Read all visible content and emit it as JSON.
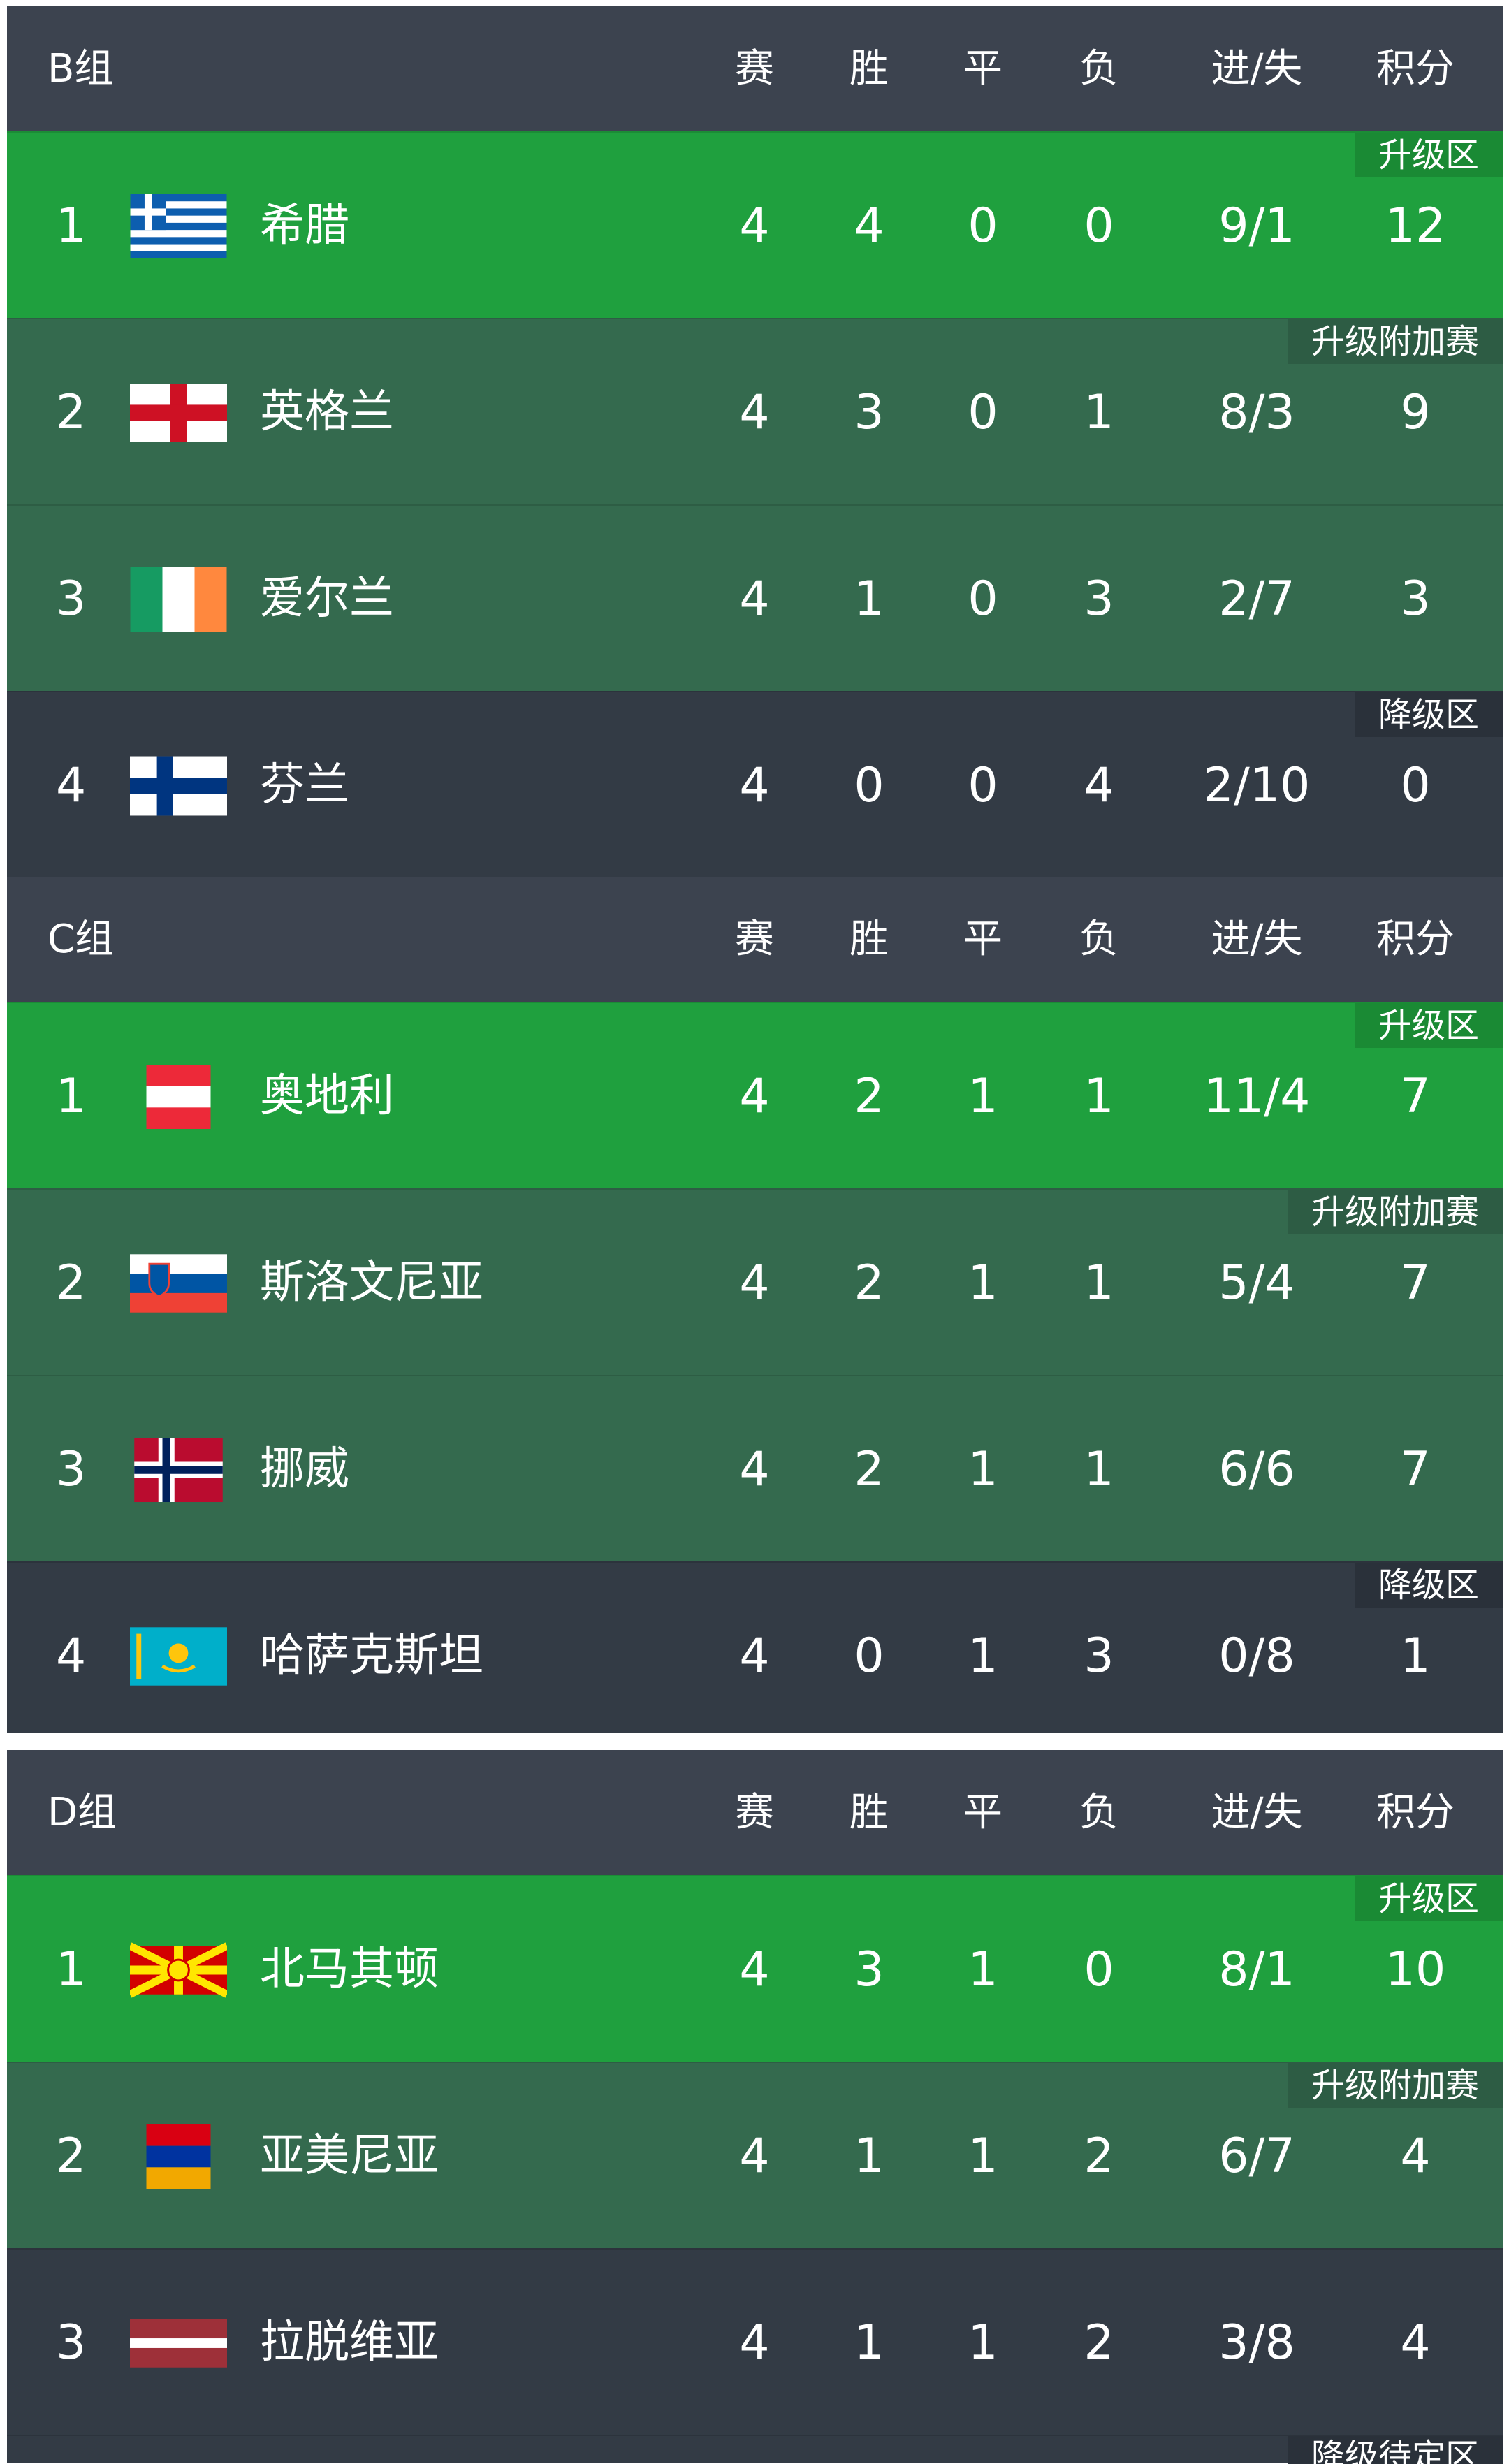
{
  "columns": [
    "赛",
    "胜",
    "平",
    "负",
    "进/失",
    "积分"
  ],
  "groups": [
    {
      "name": "B组",
      "rows": [
        {
          "rank": "1",
          "flag": "greece",
          "team": "希腊",
          "p": "4",
          "w": "4",
          "d": "0",
          "l": "0",
          "gd": "9/1",
          "pts": "12",
          "zone": "promo",
          "badge": "升级区"
        },
        {
          "rank": "2",
          "flag": "england",
          "team": "英格兰",
          "p": "4",
          "w": "3",
          "d": "0",
          "l": "1",
          "gd": "8/3",
          "pts": "9",
          "zone": "playoff",
          "badge": "升级附加赛"
        },
        {
          "rank": "3",
          "flag": "ireland",
          "team": "爱尔兰",
          "p": "4",
          "w": "1",
          "d": "0",
          "l": "3",
          "gd": "2/7",
          "pts": "3",
          "zone": "mid",
          "badge": ""
        },
        {
          "rank": "4",
          "flag": "finland",
          "team": "芬兰",
          "p": "4",
          "w": "0",
          "d": "0",
          "l": "4",
          "gd": "2/10",
          "pts": "0",
          "zone": "releg",
          "badge": "降级区"
        }
      ]
    },
    {
      "name": "C组",
      "rows": [
        {
          "rank": "1",
          "flag": "austria",
          "team": "奥地利",
          "p": "4",
          "w": "2",
          "d": "1",
          "l": "1",
          "gd": "11/4",
          "pts": "7",
          "zone": "promo",
          "badge": "升级区"
        },
        {
          "rank": "2",
          "flag": "slovenia",
          "team": "斯洛文尼亚",
          "p": "4",
          "w": "2",
          "d": "1",
          "l": "1",
          "gd": "5/4",
          "pts": "7",
          "zone": "playoff",
          "badge": "升级附加赛"
        },
        {
          "rank": "3",
          "flag": "norway",
          "team": "挪威",
          "p": "4",
          "w": "2",
          "d": "1",
          "l": "1",
          "gd": "6/6",
          "pts": "7",
          "zone": "mid",
          "badge": ""
        },
        {
          "rank": "4",
          "flag": "kazakhstan",
          "team": "哈萨克斯坦",
          "p": "4",
          "w": "0",
          "d": "1",
          "l": "3",
          "gd": "0/8",
          "pts": "1",
          "zone": "releg",
          "badge": "降级区"
        }
      ]
    },
    {
      "name": "D组",
      "rows": [
        {
          "rank": "1",
          "flag": "north-macedonia",
          "team": "北马其顿",
          "p": "4",
          "w": "3",
          "d": "1",
          "l": "0",
          "gd": "8/1",
          "pts": "10",
          "zone": "promo",
          "badge": "升级区"
        },
        {
          "rank": "2",
          "flag": "armenia",
          "team": "亚美尼亚",
          "p": "4",
          "w": "1",
          "d": "1",
          "l": "2",
          "gd": "6/7",
          "pts": "4",
          "zone": "playoff",
          "badge": "升级附加赛"
        },
        {
          "rank": "3",
          "flag": "latvia",
          "team": "拉脱维亚",
          "p": "4",
          "w": "1",
          "d": "1",
          "l": "2",
          "gd": "3/8",
          "pts": "4",
          "zone": "plain",
          "badge": ""
        }
      ],
      "partial_row_badge": "降级待定区"
    }
  ],
  "colors": {
    "header": "#3c434f",
    "promo": "#1fa03e",
    "playoff": "#346a4e",
    "relegation": "#333b45"
  }
}
